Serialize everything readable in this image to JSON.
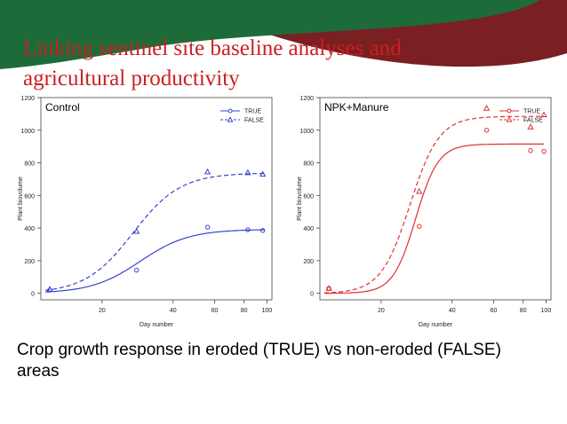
{
  "slide": {
    "title_line1": "Linking sentinel site baseline analyses and",
    "title_line2": "agricultural productivity",
    "caption_line1": "Crop growth response in eroded (TRUE) vs non-eroded (FALSE)",
    "caption_line2": "areas",
    "colors": {
      "title": "#cc1f1f",
      "banner_green": "#1e6b3a",
      "banner_red": "#7a1f22"
    }
  },
  "chart_data": [
    {
      "type": "scatter",
      "title": "Control",
      "xlabel": "Day number",
      "ylabel": "Plant biovolume",
      "x_scale": "log",
      "x_ticks": [
        20,
        40,
        60,
        80,
        100
      ],
      "y_ticks": [
        0,
        200,
        400,
        600,
        800,
        1000,
        1200
      ],
      "xlim": [
        11,
        105
      ],
      "ylim": [
        -40,
        1200
      ],
      "color": "#3344cc",
      "legend": "top-right",
      "series": [
        {
          "name": "TRUE",
          "marker": "circle",
          "line": "solid",
          "x": [
            12,
            28,
            56,
            83,
            96
          ],
          "y": [
            20,
            142,
            405,
            390,
            385
          ],
          "fit": {
            "asymptote": 392,
            "x50": 29,
            "slope": 4.2
          }
        },
        {
          "name": "FALSE",
          "marker": "triangle",
          "line": "dashed",
          "x": [
            12,
            28,
            56,
            83,
            96
          ],
          "y": [
            25,
            380,
            745,
            740,
            730
          ],
          "fit": {
            "asymptote": 738,
            "x50": 27,
            "slope": 4.3
          }
        }
      ]
    },
    {
      "type": "scatter",
      "title": "NPK+Manure",
      "xlabel": "Day number",
      "ylabel": "Plant biovolume",
      "x_scale": "log",
      "x_ticks": [
        20,
        40,
        60,
        80,
        100
      ],
      "y_ticks": [
        0,
        200,
        400,
        600,
        800,
        1000,
        1200
      ],
      "xlim": [
        11,
        105
      ],
      "ylim": [
        -40,
        1200
      ],
      "color": "#e03030",
      "legend": "top-right",
      "series": [
        {
          "name": "TRUE",
          "marker": "circle",
          "line": "solid",
          "x": [
            12,
            29,
            56,
            86,
            98
          ],
          "y": [
            30,
            410,
            1000,
            875,
            870
          ],
          "fit": {
            "asymptote": 915,
            "x50": 28,
            "slope": 9
          }
        },
        {
          "name": "FALSE",
          "marker": "triangle",
          "line": "dashed",
          "x": [
            12,
            29,
            56,
            86,
            98
          ],
          "y": [
            30,
            625,
            1135,
            1020,
            1095
          ],
          "fit": {
            "asymptote": 1085,
            "x50": 26.5,
            "slope": 7
          }
        }
      ]
    }
  ]
}
